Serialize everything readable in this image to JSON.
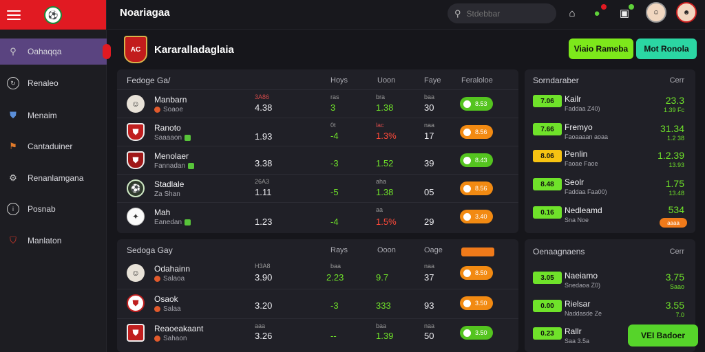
{
  "app": {
    "title": "Noariagaa"
  },
  "sidebar": {
    "items": [
      {
        "label": "Oahaqqa",
        "icon": "search-icon"
      },
      {
        "label": "Renaleo",
        "icon": "refresh-icon"
      },
      {
        "label": "Menaim",
        "icon": "shield-icon"
      },
      {
        "label": "Cantaduiner",
        "icon": "flag-icon"
      },
      {
        "label": "Renanlamgana",
        "icon": "settings-icon"
      },
      {
        "label": "Posnab",
        "icon": "info-icon"
      },
      {
        "label": "Manlaton",
        "icon": "badge-icon"
      }
    ]
  },
  "topbar": {
    "search_placeholder": "Stdebbar"
  },
  "header": {
    "title": "Kararalladaglaia",
    "btn_primary": "Viaio Rameba",
    "btn_secondary": "Mot Ronola"
  },
  "table1": {
    "heading": "Fedoge Ga/",
    "cols": [
      "Hoys",
      "Uoon",
      "Faye",
      "Feraloloe"
    ],
    "rows": [
      {
        "n1": "Manbarn",
        "n2": "Soaoe",
        "c1s": "3A86",
        "c1": "4.38",
        "c2s": "ras",
        "c2": "3",
        "c3s": "bra",
        "c3": "1.38",
        "c4s": "baa",
        "c4": "30",
        "pill": "8.53"
      },
      {
        "n1": "Ranoto",
        "n2": "Saaaaon",
        "c1": "1.93",
        "c2s": "0t",
        "c2": "-4",
        "c3s": "lac",
        "c3": "1.3%",
        "c4s": "naa",
        "c4": "17",
        "pill": "8.56"
      },
      {
        "n1": "Menolaer",
        "n2": "Fannadan",
        "c1": "3.38",
        "c2": "-3",
        "c3": "1.52",
        "c4": "39",
        "pill": "8.43"
      },
      {
        "n1": "Stadlale",
        "n2": "Za Shan",
        "c1s": "26A3",
        "c1": "1.11",
        "c2": "-5",
        "c3s": "aha",
        "c3": "1.38",
        "c4": "05",
        "pill": "8.56"
      },
      {
        "n1": "Mah",
        "n2": "Eanedan",
        "c1": "1.23",
        "c2": "-4",
        "c3s": "aa",
        "c3": "1.5%",
        "c4": "29",
        "pill": "3.40"
      }
    ]
  },
  "table2": {
    "heading": "Sedoga Gay",
    "cols": [
      "Rays",
      "Ooon",
      "Oage"
    ],
    "rows": [
      {
        "n1": "Odahainn",
        "n2": "Salaoa",
        "c1s": "H3A8",
        "c1": "3.90",
        "c2s": "baa",
        "c2": "2.23",
        "c3": "9.7",
        "c4s": "naa",
        "c4": "37",
        "pill": "8.50"
      },
      {
        "n1": "Osaok",
        "n2": "Salaa",
        "c1": "3.20",
        "c2": "-3",
        "c3": "333",
        "c4": "93",
        "pill": "3.50"
      },
      {
        "n1": "Reaoeakaant",
        "n2": "Sahaon",
        "c1s": "aaa",
        "c1": "3.26",
        "c2": "--",
        "c3s": "baa",
        "c3": "1.39",
        "c4s": "naa",
        "c4": "50",
        "pill": "3.50"
      }
    ]
  },
  "side1": {
    "heading": "Sorndaraber",
    "col": "Cerr",
    "rows": [
      {
        "chip": "7.06",
        "t1": "Kailr",
        "t2": "Faddaa Z40)",
        "v": "23.3",
        "vs": "1.39 Fc"
      },
      {
        "chip": "7.66",
        "t1": "Fremyo",
        "t2": "Faoaaaan aoaa",
        "v": "31.34",
        "vs": "1.2 38"
      },
      {
        "chip": "8.06",
        "t1": "Penlin",
        "t2": "Faoae Faoe",
        "v": "1.2.39",
        "vs": "13.93"
      },
      {
        "chip": "8.48",
        "t1": "Seolr",
        "t2": "Faddaa Faa00)",
        "v": "1.75",
        "vs": "13.48"
      },
      {
        "chip": "0.16",
        "t1": "Nedleamd",
        "t2": "Sna Noe",
        "v": "534",
        "badge": "aaaa"
      }
    ]
  },
  "side2": {
    "heading": "Oenaagnaens",
    "col": "Cerr",
    "rows": [
      {
        "chip": "3.05",
        "t1": "Naeiamo",
        "t2": "Snedaoa Z0)",
        "v": "3.75",
        "vs": "Saao"
      },
      {
        "chip": "0.00",
        "t1": "Rielsar",
        "t2": "Naddasde Ze",
        "v": "3.55",
        "vs": "7.0"
      },
      {
        "chip": "0.23",
        "t1": "Rallr",
        "t2": "Saa 3.5a"
      }
    ]
  },
  "float_button": "VEI Badoer"
}
